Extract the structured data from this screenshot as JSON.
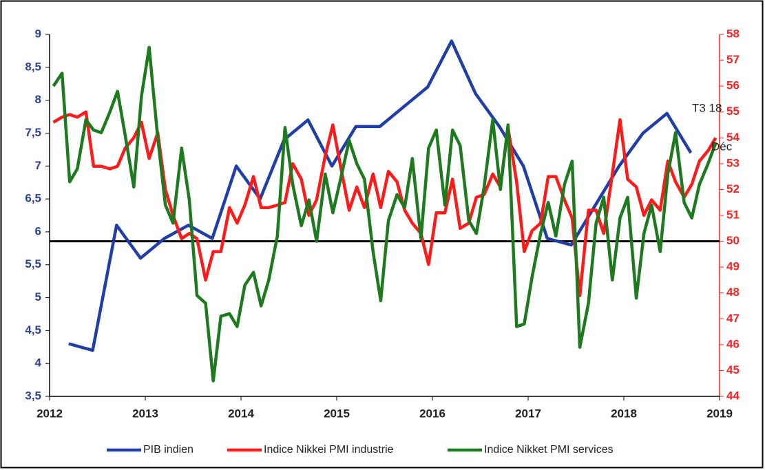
{
  "chart_data": {
    "type": "line",
    "xlim": [
      2012,
      2019
    ],
    "xticks": [
      2012,
      2013,
      2014,
      2015,
      2016,
      2017,
      2018,
      2019
    ],
    "ylim": [
      3.5,
      9
    ],
    "yticks": [
      {
        "value": 3.5,
        "label": "3,5"
      },
      4,
      {
        "value": 4.5,
        "label": "4,5"
      },
      5,
      {
        "value": 5.5,
        "label": "5,5"
      },
      6,
      {
        "value": 6.5,
        "label": "6,5"
      },
      7,
      {
        "value": 7.5,
        "label": "7,5"
      },
      8,
      {
        "value": 8.5,
        "label": "8,5"
      },
      9
    ],
    "y2lim": [
      44,
      58
    ],
    "y2ticks": [
      44,
      45,
      46,
      47,
      48,
      49,
      50,
      51,
      52,
      53,
      54,
      55,
      56,
      57,
      58
    ],
    "reference_line": {
      "value": 50,
      "axis": "y2",
      "color": "#000000"
    },
    "annotations": [
      "T3 18",
      "Déc"
    ],
    "x": [
      2012.04,
      2012.13,
      2012.21,
      2012.29,
      2012.38,
      2012.46,
      2012.54,
      2012.63,
      2012.71,
      2012.79,
      2012.88,
      2012.96,
      2013.04,
      2013.13,
      2013.21,
      2013.29,
      2013.38,
      2013.46,
      2013.54,
      2013.63,
      2013.71,
      2013.79,
      2013.88,
      2013.96,
      2014.04,
      2014.13,
      2014.21,
      2014.29,
      2014.38,
      2014.46,
      2014.54,
      2014.63,
      2014.71,
      2014.79,
      2014.88,
      2014.96,
      2015.04,
      2015.13,
      2015.21,
      2015.29,
      2015.38,
      2015.46,
      2015.54,
      2015.63,
      2015.71,
      2015.79,
      2015.88,
      2015.96,
      2016.04,
      2016.13,
      2016.21,
      2016.29,
      2016.38,
      2016.46,
      2016.54,
      2016.63,
      2016.71,
      2016.79,
      2016.88,
      2016.96,
      2017.04,
      2017.13,
      2017.21,
      2017.29,
      2017.38,
      2017.46,
      2017.54,
      2017.63,
      2017.71,
      2017.79,
      2017.88,
      2017.96,
      2018.04,
      2018.13,
      2018.21,
      2018.29,
      2018.38,
      2018.46,
      2018.54,
      2018.63,
      2018.71,
      2018.79,
      2018.88,
      2018.96
    ],
    "series": [
      {
        "name": "PIB indien",
        "color": "#1f3ea8",
        "axis": "y",
        "x": [
          2012.2,
          2012.45,
          2012.7,
          2012.95,
          2013.2,
          2013.45,
          2013.7,
          2013.95,
          2014.2,
          2014.45,
          2014.7,
          2014.95,
          2015.2,
          2015.45,
          2015.7,
          2015.95,
          2016.2,
          2016.45,
          2016.7,
          2016.95,
          2017.2,
          2017.45,
          2017.7,
          2017.95,
          2018.2,
          2018.45,
          2018.7
        ],
        "values": [
          4.3,
          4.2,
          6.1,
          5.6,
          5.9,
          6.1,
          5.9,
          7.0,
          6.5,
          7.4,
          7.7,
          7.0,
          7.6,
          7.6,
          7.9,
          8.2,
          8.9,
          8.1,
          7.6,
          7.0,
          5.9,
          5.8,
          6.4,
          7.0,
          7.5,
          7.8,
          7.2
        ]
      },
      {
        "name": "Indice Nikkei PMI industrie",
        "color": "#ff1a1a",
        "axis": "y2",
        "values": [
          54.6,
          54.8,
          54.9,
          54.8,
          55.0,
          52.9,
          52.9,
          52.8,
          52.9,
          53.6,
          54.0,
          54.6,
          53.2,
          54.2,
          52.0,
          51.0,
          50.1,
          50.3,
          50.1,
          48.5,
          49.6,
          49.6,
          51.3,
          50.7,
          51.4,
          52.5,
          51.3,
          51.3,
          51.4,
          51.5,
          53.0,
          52.4,
          51.0,
          51.6,
          53.3,
          54.5,
          52.9,
          51.2,
          52.1,
          51.3,
          52.6,
          51.3,
          52.7,
          52.3,
          51.2,
          50.7,
          50.3,
          49.1,
          51.1,
          51.1,
          52.4,
          50.5,
          50.7,
          51.7,
          51.8,
          52.6,
          52.1,
          54.4,
          52.3,
          49.6,
          50.4,
          50.7,
          52.5,
          52.5,
          51.6,
          50.9,
          47.9,
          51.2,
          51.2,
          50.3,
          52.6,
          54.7,
          52.4,
          52.1,
          51.0,
          51.6,
          51.2,
          53.1,
          52.3,
          51.7,
          52.2,
          53.1,
          53.5,
          54.0
        ]
      },
      {
        "name": "Indice Nikket PMI services",
        "color": "#1e7a1e",
        "axis": "y2",
        "values": [
          56.0,
          56.5,
          52.3,
          52.8,
          54.7,
          54.3,
          54.2,
          55.0,
          55.8,
          54.1,
          52.1,
          55.6,
          57.5,
          54.0,
          51.4,
          50.7,
          53.6,
          51.6,
          47.9,
          47.6,
          44.6,
          47.1,
          47.2,
          46.7,
          48.3,
          48.8,
          47.5,
          48.5,
          50.2,
          54.4,
          52.2,
          50.6,
          51.6,
          50.0,
          52.6,
          51.1,
          52.4,
          53.9,
          53.0,
          52.4,
          49.6,
          47.7,
          50.8,
          51.8,
          51.3,
          53.2,
          50.1,
          53.6,
          54.3,
          51.4,
          54.3,
          53.7,
          50.8,
          50.3,
          52.1,
          54.7,
          52.0,
          54.5,
          46.7,
          46.8,
          48.6,
          50.3,
          51.5,
          50.2,
          52.2,
          53.1,
          45.9,
          47.6,
          50.7,
          51.7,
          48.5,
          50.9,
          51.7,
          47.8,
          50.3,
          51.4,
          49.6,
          52.6,
          54.2,
          51.5,
          50.9,
          52.2,
          53.0,
          53.8
        ]
      }
    ]
  }
}
